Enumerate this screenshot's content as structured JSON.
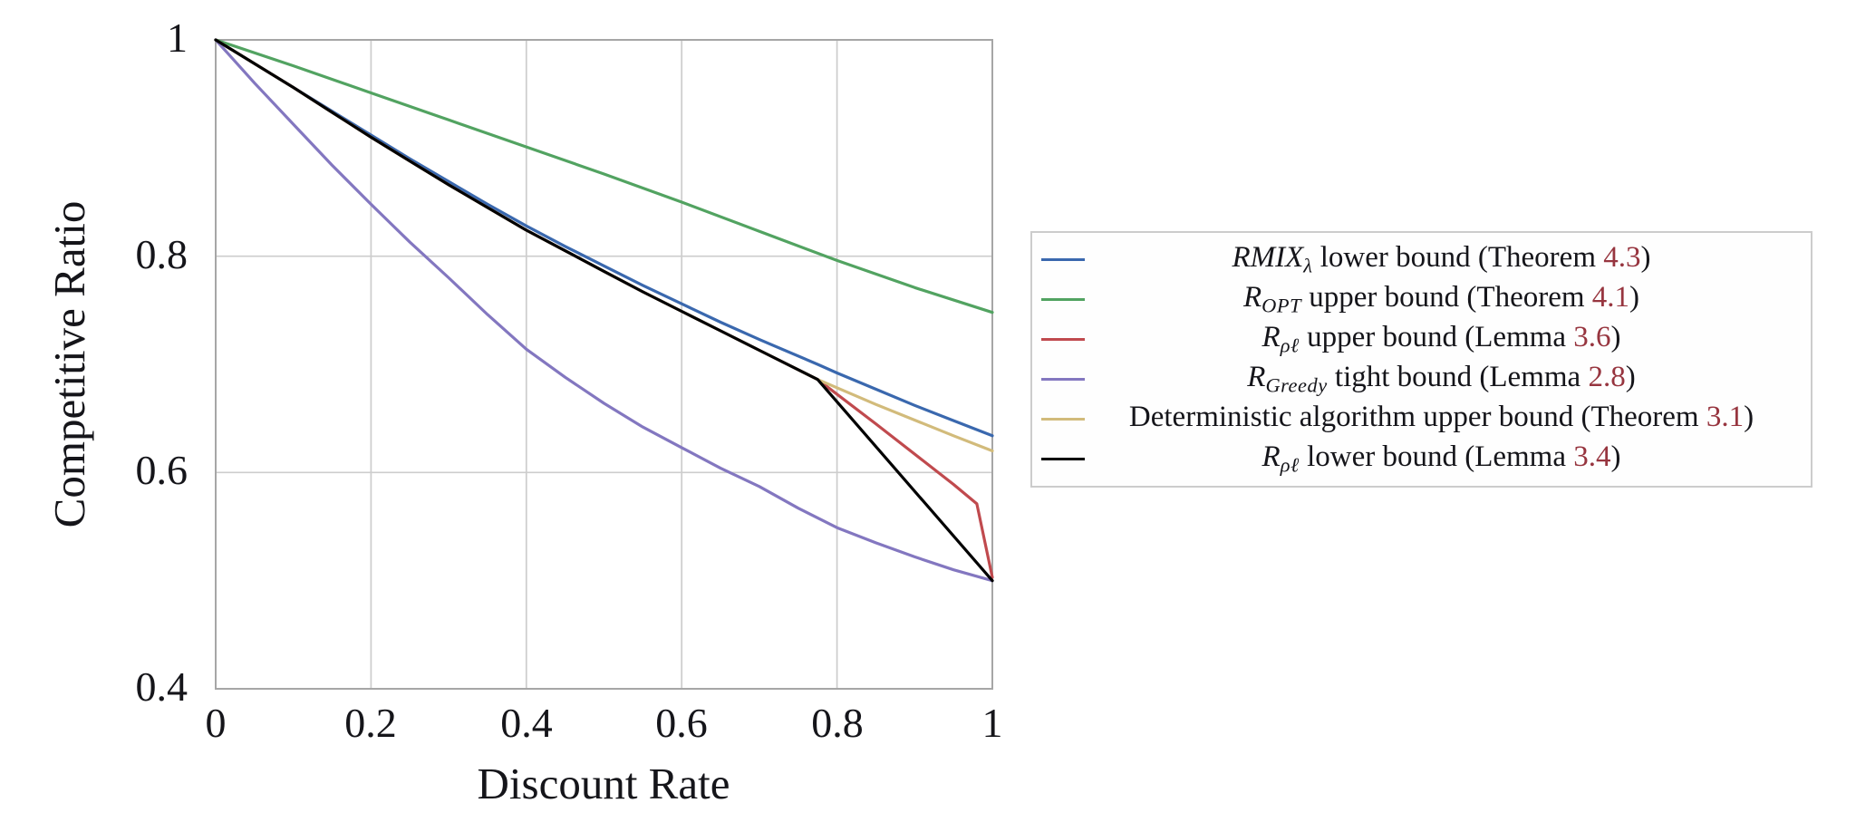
{
  "colors": {
    "background": "#ffffff",
    "text": "#15151a",
    "axis_frame": "#a6a6a6",
    "grid": "#cdcdcd",
    "legend_border": "#cccccc",
    "legend_background": "#fefefe",
    "reference": "#97353f",
    "blue": "#3a68ae",
    "green": "#52a361",
    "red": "#c04a4e",
    "purple": "#8377c0",
    "tan": "#d2bb7b",
    "black": "#000000"
  },
  "chart_data": {
    "type": "line",
    "title": "",
    "xlabel": "Discount Rate",
    "ylabel": "Competitive Ratio",
    "xlim": [
      0,
      1
    ],
    "ylim": [
      0.4,
      1.0
    ],
    "grid": true,
    "legend_position": "outside-right",
    "x_ticks": [
      0,
      0.2,
      0.4,
      0.6,
      0.8,
      1
    ],
    "x_tick_labels": [
      "0",
      "0.2",
      "0.4",
      "0.6",
      "0.8",
      "1"
    ],
    "y_ticks": [
      0.4,
      0.6,
      0.8,
      1
    ],
    "y_tick_labels": [
      "0.4",
      "0.6",
      "0.8",
      "1"
    ],
    "x_gridlines": [
      0.2,
      0.4,
      0.6,
      0.8
    ],
    "y_gridlines": [
      0.6,
      0.8
    ],
    "series": [
      {
        "name": "RMIX_λ lower bound (Theorem 4.3)",
        "color": "#3a68ae",
        "points": [
          [
            0,
            1
          ],
          [
            0.05,
            0.978
          ],
          [
            0.1,
            0.956
          ],
          [
            0.15,
            0.934
          ],
          [
            0.2,
            0.912
          ],
          [
            0.25,
            0.89
          ],
          [
            0.3,
            0.869
          ],
          [
            0.35,
            0.848
          ],
          [
            0.4,
            0.828
          ],
          [
            0.45,
            0.809
          ],
          [
            0.5,
            0.791
          ],
          [
            0.55,
            0.773
          ],
          [
            0.6,
            0.756
          ],
          [
            0.65,
            0.739
          ],
          [
            0.7,
            0.723
          ],
          [
            0.775,
            0.7
          ],
          [
            0.8,
            0.692
          ],
          [
            0.85,
            0.677
          ],
          [
            0.9,
            0.662
          ],
          [
            0.95,
            0.648
          ],
          [
            1,
            0.634
          ]
        ]
      },
      {
        "name": "R_OPT upper bound (Theorem 4.1)",
        "color": "#52a361",
        "points": [
          [
            0,
            1
          ],
          [
            0.1,
            0.976
          ],
          [
            0.2,
            0.951
          ],
          [
            0.3,
            0.926
          ],
          [
            0.4,
            0.901
          ],
          [
            0.5,
            0.876
          ],
          [
            0.6,
            0.85
          ],
          [
            0.7,
            0.823
          ],
          [
            0.8,
            0.796
          ],
          [
            0.9,
            0.771
          ],
          [
            1,
            0.748
          ]
        ]
      },
      {
        "name": "R_ρℓ upper bound (Lemma 3.6)",
        "color": "#c04a4e",
        "points": [
          [
            0,
            1
          ],
          [
            0.05,
            0.978
          ],
          [
            0.1,
            0.956
          ],
          [
            0.15,
            0.933
          ],
          [
            0.2,
            0.91
          ],
          [
            0.25,
            0.888
          ],
          [
            0.3,
            0.866
          ],
          [
            0.35,
            0.845
          ],
          [
            0.4,
            0.824
          ],
          [
            0.45,
            0.805
          ],
          [
            0.5,
            0.786
          ],
          [
            0.55,
            0.767
          ],
          [
            0.6,
            0.749
          ],
          [
            0.65,
            0.731
          ],
          [
            0.7,
            0.713
          ],
          [
            0.775,
            0.686
          ],
          [
            0.85,
            0.645
          ],
          [
            0.95,
            0.589
          ],
          [
            0.98,
            0.571
          ],
          [
            1,
            0.503
          ]
        ]
      },
      {
        "name": "R_Greedy tight bound (Lemma 2.8)",
        "color": "#8377c0",
        "points": [
          [
            0,
            1
          ],
          [
            0.05,
            0.96
          ],
          [
            0.1,
            0.922
          ],
          [
            0.15,
            0.884
          ],
          [
            0.2,
            0.848
          ],
          [
            0.25,
            0.813
          ],
          [
            0.3,
            0.78
          ],
          [
            0.35,
            0.746
          ],
          [
            0.4,
            0.714
          ],
          [
            0.45,
            0.688
          ],
          [
            0.5,
            0.664
          ],
          [
            0.55,
            0.642
          ],
          [
            0.6,
            0.623
          ],
          [
            0.65,
            0.604
          ],
          [
            0.7,
            0.587
          ],
          [
            0.75,
            0.567
          ],
          [
            0.8,
            0.549
          ],
          [
            0.85,
            0.535
          ],
          [
            0.9,
            0.522
          ],
          [
            0.95,
            0.51
          ],
          [
            1,
            0.5
          ]
        ]
      },
      {
        "name": "Deterministic algorithm upper bound (Theorem 3.1)",
        "color": "#d2bb7b",
        "points": [
          [
            0,
            1
          ],
          [
            0.05,
            0.978
          ],
          [
            0.1,
            0.956
          ],
          [
            0.15,
            0.933
          ],
          [
            0.2,
            0.91
          ],
          [
            0.25,
            0.888
          ],
          [
            0.3,
            0.866
          ],
          [
            0.35,
            0.845
          ],
          [
            0.4,
            0.824
          ],
          [
            0.45,
            0.805
          ],
          [
            0.5,
            0.786
          ],
          [
            0.55,
            0.767
          ],
          [
            0.6,
            0.749
          ],
          [
            0.65,
            0.731
          ],
          [
            0.7,
            0.713
          ],
          [
            0.775,
            0.686
          ],
          [
            0.85,
            0.663
          ],
          [
            0.95,
            0.634
          ],
          [
            1,
            0.62
          ]
        ]
      },
      {
        "name": "R_ρℓ lower bound (Lemma 3.4)",
        "color": "#000000",
        "points": [
          [
            0,
            1
          ],
          [
            0.05,
            0.978
          ],
          [
            0.1,
            0.956
          ],
          [
            0.15,
            0.933
          ],
          [
            0.2,
            0.91
          ],
          [
            0.25,
            0.888
          ],
          [
            0.3,
            0.866
          ],
          [
            0.35,
            0.845
          ],
          [
            0.4,
            0.824
          ],
          [
            0.45,
            0.805
          ],
          [
            0.5,
            0.786
          ],
          [
            0.55,
            0.767
          ],
          [
            0.6,
            0.749
          ],
          [
            0.65,
            0.731
          ],
          [
            0.7,
            0.713
          ],
          [
            0.775,
            0.686
          ],
          [
            1,
            0.5
          ]
        ]
      }
    ]
  },
  "legend": {
    "items": [
      {
        "math": "RMIX",
        "sub": "λ",
        "text": " lower bound (Theorem ",
        "ref": "4.3",
        "close": ")",
        "color": "#3a68ae"
      },
      {
        "math": "R",
        "sub": "OPT",
        "text": " upper bound (Theorem ",
        "ref": "4.1",
        "close": ")",
        "color": "#52a361"
      },
      {
        "math": "R",
        "sub": "ρℓ",
        "text": " upper bound (Lemma ",
        "ref": "3.6",
        "close": ")",
        "color": "#c04a4e"
      },
      {
        "math": "R",
        "sub": "Greedy",
        "text": " tight bound (Lemma ",
        "ref": "2.8",
        "close": ")",
        "color": "#8377c0"
      },
      {
        "math": "",
        "sub": "",
        "text": "Deterministic algorithm upper bound (Theorem ",
        "ref": "3.1",
        "close": ")",
        "color": "#d2bb7b"
      },
      {
        "math": "R",
        "sub": "ρℓ",
        "text": " lower bound (Lemma ",
        "ref": "3.4",
        "close": ")",
        "color": "#000000"
      }
    ]
  }
}
